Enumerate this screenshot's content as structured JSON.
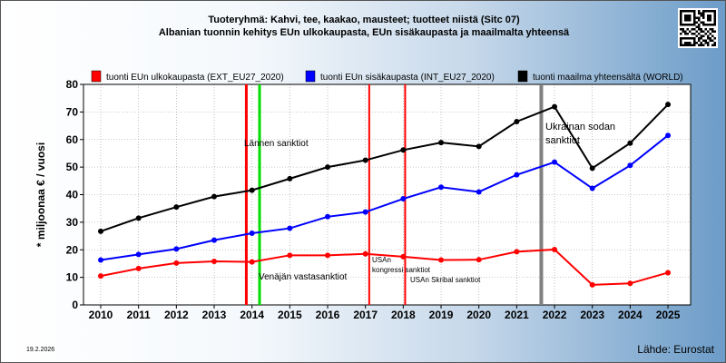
{
  "header": {
    "title_line1": "Tuoteryhmä: Kahvi, tee, kaakao, mausteet; tuotteet niistä (Sitc 07)",
    "title_line2": "Albanian tuonnin kehitys EUn ulkokaupasta, EUn sisäkaupasta ja maailmalta yhteensä"
  },
  "footer": {
    "date": "19.2.2026",
    "source": "Lähde: Eurostat"
  },
  "chart_data": {
    "type": "line",
    "ylabel": "* miljoonaa € / vuosi",
    "xlabel": "",
    "x": [
      2010,
      2011,
      2012,
      2013,
      2014,
      2015,
      2016,
      2017,
      2018,
      2019,
      2020,
      2021,
      2022,
      2023,
      2024,
      2025
    ],
    "ylim": [
      0,
      80
    ],
    "yticks": [
      0,
      10,
      20,
      30,
      40,
      50,
      60,
      70,
      80
    ],
    "grid": true,
    "legend_position": "top",
    "series": [
      {
        "name": "tuonti EUn ulkokaupasta (EXT_EU27_2020)",
        "color": "#ff0000",
        "values": [
          10.5,
          13.2,
          15.2,
          15.8,
          15.6,
          18.0,
          18.0,
          18.5,
          17.5,
          16.3,
          16.4,
          19.3,
          20.1,
          7.3,
          7.8,
          11.7
        ]
      },
      {
        "name": "tuonti EUn sisäkaupasta (INT_EU27_2020)",
        "color": "#0000ff",
        "values": [
          16.3,
          18.3,
          20.3,
          23.5,
          26.0,
          27.8,
          32.0,
          33.7,
          38.5,
          42.7,
          41.0,
          47.2,
          51.8,
          42.3,
          50.6,
          61.5
        ]
      },
      {
        "name": "tuonti maailma yhteensältä (WORLD)",
        "color": "#000000",
        "values": [
          26.7,
          31.5,
          35.5,
          39.3,
          41.6,
          45.8,
          50.0,
          52.5,
          56.2,
          58.9,
          57.5,
          66.5,
          71.9,
          49.6,
          58.7,
          72.7
        ]
      }
    ],
    "annotations": [
      {
        "x": 2013.85,
        "color": "#ff0000",
        "label": ""
      },
      {
        "x": 2014.2,
        "color": "#00dd00",
        "label": "Lännen sanktiot"
      },
      {
        "x": 2014.2,
        "color": "#00dd00",
        "label": "Venäjän vastasanktiot"
      },
      {
        "x": 2017.1,
        "color": "#ff0000",
        "label": "USAn kongressi sanktiot"
      },
      {
        "x": 2018.05,
        "color": "#ff0000",
        "label": "USAn Skribal sanktiot"
      },
      {
        "x": 2021.65,
        "color": "#808080",
        "label": "Ukrainan sodan sanktiot"
      }
    ]
  }
}
